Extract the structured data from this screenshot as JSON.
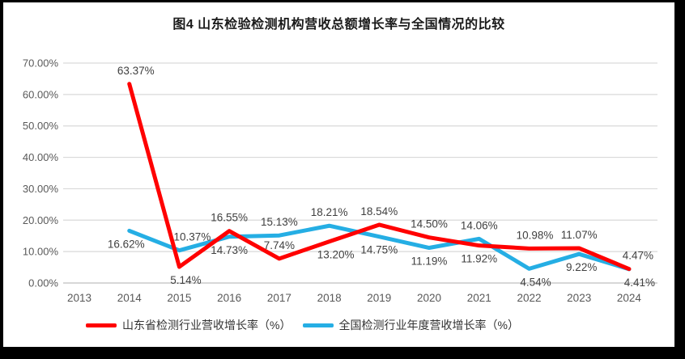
{
  "title": "图4  山东检验检测机构营收总额增长率与全国情况的比较",
  "chart_data": {
    "type": "line",
    "categories": [
      "2013",
      "2014",
      "2015",
      "2016",
      "2017",
      "2018",
      "2019",
      "2020",
      "2021",
      "2022",
      "2023",
      "2024"
    ],
    "series": [
      {
        "name": "山东省检测行业营收增长率（%）",
        "color": "#FF0000",
        "values": [
          null,
          63.37,
          5.14,
          16.55,
          7.74,
          13.2,
          18.54,
          14.5,
          11.92,
          10.98,
          11.07,
          4.47
        ],
        "label_pos": [
          null,
          "above",
          "below",
          "above",
          "above",
          "below",
          "above",
          "above",
          "below",
          "above",
          "above",
          "above"
        ],
        "label_dx": [
          0,
          8,
          8,
          0,
          0,
          8,
          0,
          0,
          0,
          7,
          0,
          11
        ]
      },
      {
        "name": "全国检测行业年度营收增长率（%）",
        "color": "#25AEE4",
        "values": [
          null,
          16.62,
          10.37,
          14.73,
          15.13,
          18.21,
          14.75,
          11.19,
          14.06,
          4.54,
          9.22,
          4.41
        ],
        "label_pos": [
          null,
          "below",
          "above",
          "below",
          "above",
          "above",
          "below",
          "below",
          "above",
          "below",
          "below",
          "below"
        ],
        "label_dx": [
          0,
          -4,
          16,
          0,
          0,
          0,
          0,
          0,
          0,
          8,
          3,
          13
        ]
      }
    ],
    "title": "图4  山东检验检测机构营收总额增长率与全国情况的比较",
    "xlabel": "",
    "ylabel": "",
    "ylim": [
      0,
      70
    ],
    "ytick_step": 10,
    "ytick_labels": [
      "0.00%",
      "10.00%",
      "20.00%",
      "30.00%",
      "40.00%",
      "50.00%",
      "60.00%",
      "70.00%"
    ],
    "grid": true,
    "legend_position": "bottom",
    "colors": {
      "gridline": "#D9D9D9",
      "axis_line": "#BFBFBF",
      "tick_text": "#595959",
      "data_label_text": "#404040",
      "title_text": "#1A1A1A",
      "frame": "#000000",
      "plot_background": "#FFFFFF"
    }
  }
}
